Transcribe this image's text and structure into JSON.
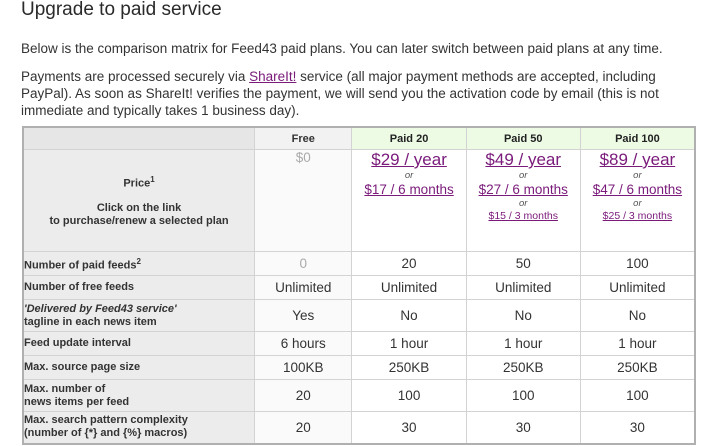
{
  "page": {
    "title": "Upgrade to paid service",
    "intro": "Below is the comparison matrix for Feed43 paid plans. You can later switch between paid plans at any time.",
    "payment_before": "Payments are processed securely via ",
    "payment_link": "ShareIt!",
    "payment_after": " service (all major payment methods are accepted, including PayPal). As soon as ShareIt! verifies the payment, we will send you the activation code by email (this is not immediate and typically takes 1 business day)."
  },
  "colors": {
    "link": "#7a1a7a",
    "yes": "#c00000",
    "no": "#1f9a1f",
    "paid_header_bg": "#edfbe5",
    "label_bg": "#ececec"
  },
  "table": {
    "headers": {
      "free": "Free",
      "paid20": "Paid 20",
      "paid50": "Paid 50",
      "paid100": "Paid 100"
    },
    "price_row": {
      "label_main": "Price",
      "label_sup": "1",
      "label_hint_line1": "Click on the link",
      "label_hint_line2": "to purchase/renew a selected plan",
      "or": "or",
      "free": "$0",
      "paid20": {
        "year": "$29 / year",
        "six_months": "$17 / 6 months"
      },
      "paid50": {
        "year": "$49 / year",
        "six_months": "$27 / 6 months",
        "three_months": "$15 / 3 months"
      },
      "paid100": {
        "year": "$89 / year",
        "six_months": "$47 / 6 months",
        "three_months": "$25 / 3 months"
      }
    },
    "rows": {
      "paid_feeds": {
        "label": "Number of paid feeds",
        "sup": "2",
        "free": "0",
        "paid20": "20",
        "paid50": "50",
        "paid100": "100"
      },
      "free_feeds": {
        "label": "Number of free feeds",
        "free": "Unlimited",
        "paid20": "Unlimited",
        "paid50": "Unlimited",
        "paid100": "Unlimited"
      },
      "tagline": {
        "label_italic": "'Delivered by Feed43 service'",
        "label_rest": "tagline in each news item",
        "free": "Yes",
        "paid20": "No",
        "paid50": "No",
        "paid100": "No"
      },
      "interval": {
        "label": "Feed update interval",
        "free": "6 hours",
        "paid20": "1 hour",
        "paid50": "1 hour",
        "paid100": "1 hour"
      },
      "page_size": {
        "label": "Max. source page size",
        "free": "100KB",
        "paid20": "250KB",
        "paid50": "250KB",
        "paid100": "250KB"
      },
      "news_items": {
        "label_line1": "Max. number of",
        "label_line2": "news items per feed",
        "free": "20",
        "paid20": "100",
        "paid50": "100",
        "paid100": "100"
      },
      "complexity": {
        "label_line1": "Max. search pattern complexity",
        "label_line2": "(number of {*} and {%} macros)",
        "free": "20",
        "paid20": "30",
        "paid50": "30",
        "paid100": "30"
      }
    }
  }
}
